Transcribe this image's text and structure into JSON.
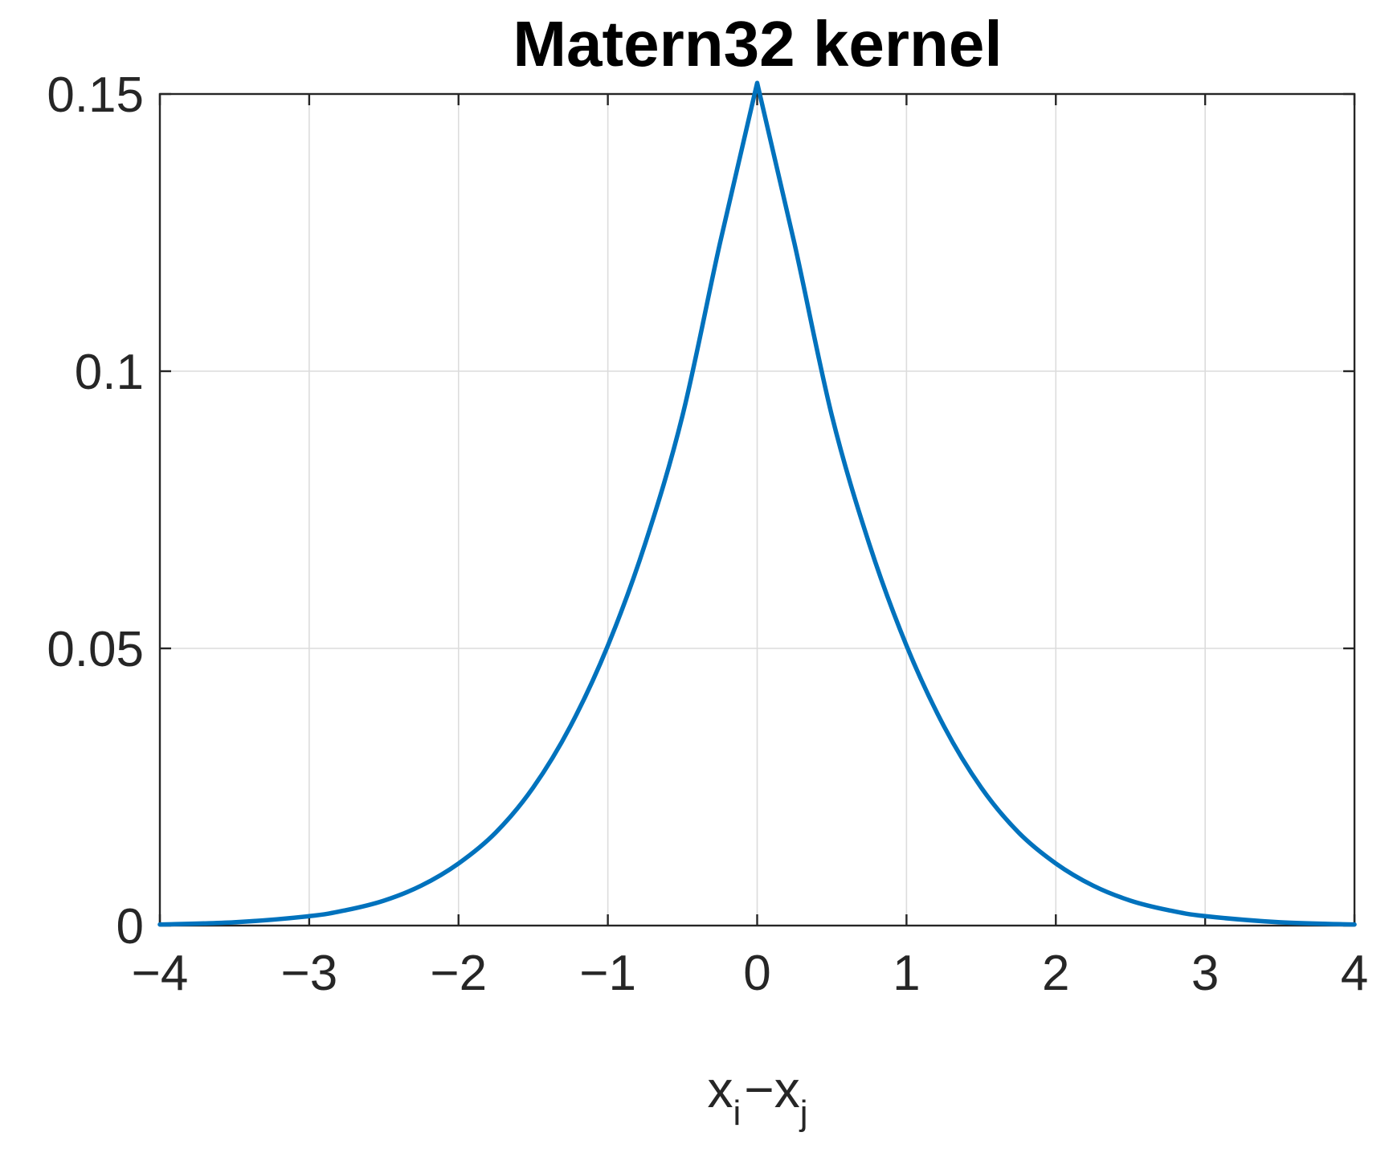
{
  "chart_data": {
    "type": "line",
    "title": "Matern32 kernel",
    "xlabel": {
      "base1": "x",
      "sub1": "i",
      "op": "−",
      "base2": "x",
      "sub2": "j"
    },
    "ylabel": "",
    "xlim": [
      -4,
      4
    ],
    "ylim": [
      0,
      0.15
    ],
    "xticks": [
      -4,
      -3,
      -2,
      -1,
      0,
      1,
      2,
      3,
      4
    ],
    "xtick_labels": [
      "−4",
      "−3",
      "−2",
      "−1",
      "0",
      "1",
      "2",
      "3",
      "4"
    ],
    "yticks": [
      0,
      0.05,
      0.1,
      0.15
    ],
    "ytick_labels": [
      "0",
      "0.05",
      "0.1",
      "0.15"
    ],
    "grid": true,
    "series": [
      {
        "color": "#0072BD",
        "x": [
          -4,
          -3.5,
          -3,
          -2.75,
          -2.5,
          -2.25,
          -2,
          -1.75,
          -1.5,
          -1.25,
          -1,
          -0.75,
          -0.5,
          -0.25,
          0,
          0.25,
          0.5,
          0.75,
          1,
          1.25,
          1.5,
          1.75,
          2,
          2.25,
          2.5,
          2.75,
          3,
          3.5,
          4
        ],
        "y": [
          0.0002,
          0.0006,
          0.0017,
          0.0028,
          0.0045,
          0.0072,
          0.0112,
          0.0168,
          0.0249,
          0.036,
          0.0505,
          0.0689,
          0.092,
          0.123,
          0.152,
          0.123,
          0.092,
          0.0689,
          0.0505,
          0.036,
          0.0249,
          0.0168,
          0.0112,
          0.0072,
          0.0045,
          0.0028,
          0.0017,
          0.0006,
          0.0002
        ]
      }
    ]
  }
}
